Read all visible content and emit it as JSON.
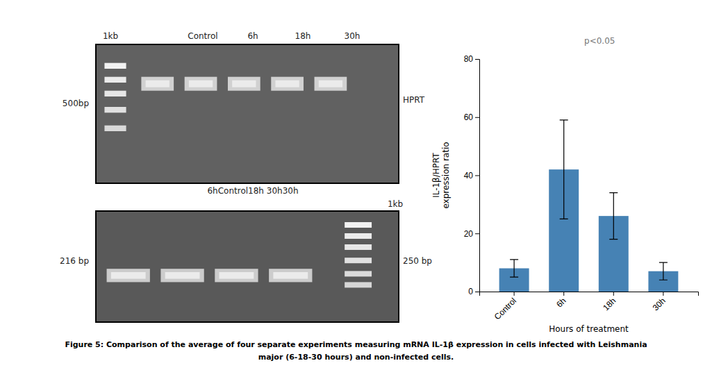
{
  "chart_data": {
    "type": "bar",
    "categories": [
      "Control",
      "6h",
      "18h",
      "30h"
    ],
    "values": [
      8,
      42,
      26,
      7
    ],
    "errors": [
      3,
      17,
      8,
      3
    ],
    "xlabel": "Hours of treatment",
    "ylabel": "IL-1β/HPRT\nexpression ratio",
    "ylim": [
      0,
      80
    ],
    "yticks": [
      0,
      20,
      40,
      60,
      80
    ],
    "annotations": [
      "p<0.05"
    ],
    "gel_labels": [
      "1kb",
      "Control",
      "6h",
      "18h",
      "30h",
      "HPRT",
      "500bp",
      "6hControl18h 30h30h",
      "1kb",
      "216 bp",
      "250 bp"
    ],
    "caption": [
      "Figure 5: Comparison of the average of four separate experiments measuring mRNA IL-1β expression in cells infected with Leishmania",
      "major (6-18-30 hours) and non-infected cells."
    ]
  }
}
